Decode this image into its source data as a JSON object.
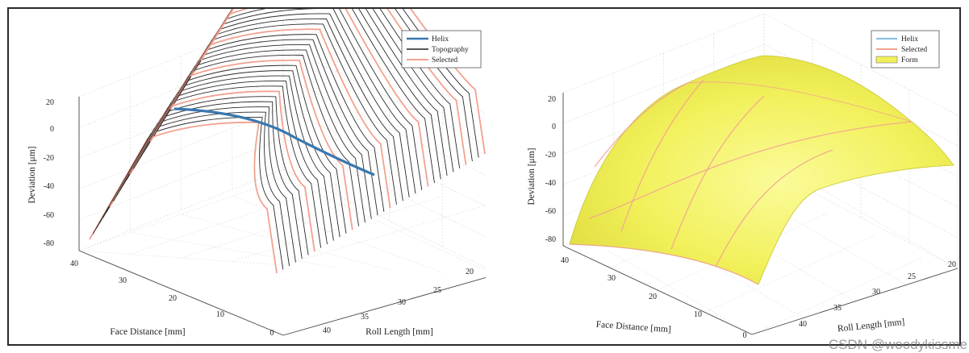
{
  "watermark": "CSDN @woodykissme",
  "chart_data": [
    {
      "type": "surface",
      "xlabel": "Face Distance [mm]",
      "ylabel": "Roll Length [mm]",
      "zlabel": "Deviation [μm]",
      "x_ticks": [
        "0",
        "10",
        "20",
        "30",
        "40"
      ],
      "y_ticks": [
        "20",
        "25",
        "30",
        "35",
        "40"
      ],
      "z_ticks": [
        "20",
        "0",
        "-20",
        "-40",
        "-60",
        "-80"
      ],
      "zlim": [
        -80,
        20
      ],
      "grid": true,
      "legend_position": "top-right",
      "legend": [
        {
          "label": "Helix",
          "color": "#3a78b0"
        },
        {
          "label": "Topography",
          "color": "#222222"
        },
        {
          "label": "Selected",
          "color": "#f2a190"
        }
      ],
      "series": [
        {
          "name": "Topography",
          "style": "black profile lines",
          "line_count": 34
        },
        {
          "name": "Selected",
          "style": "salmon profile lines",
          "line_count": 7
        },
        {
          "name": "Helix",
          "style": "blue curve"
        }
      ],
      "deviation_range": [
        -80,
        20
      ]
    },
    {
      "type": "surface",
      "xlabel": "Face Distance [mm]",
      "ylabel": "Roll Length [mm]",
      "zlabel": "Deviation [μm]",
      "x_ticks": [
        "0",
        "10",
        "20",
        "30",
        "40"
      ],
      "y_ticks": [
        "20",
        "25",
        "30",
        "35",
        "40"
      ],
      "z_ticks": [
        "20",
        "0",
        "-20",
        "-40",
        "-60",
        "-80"
      ],
      "zlim": [
        -80,
        20
      ],
      "grid": true,
      "legend_position": "top-right",
      "legend": [
        {
          "label": "Helix",
          "color": "#8ec0e0"
        },
        {
          "label": "Selected",
          "color": "#f2a190"
        },
        {
          "label": "Form",
          "color": "#f1f05a"
        }
      ],
      "series": [
        {
          "name": "Form",
          "style": "yellow surface"
        },
        {
          "name": "Selected",
          "style": "salmon lines on surface",
          "line_count": 5
        }
      ],
      "deviation_range": [
        -80,
        20
      ]
    }
  ]
}
